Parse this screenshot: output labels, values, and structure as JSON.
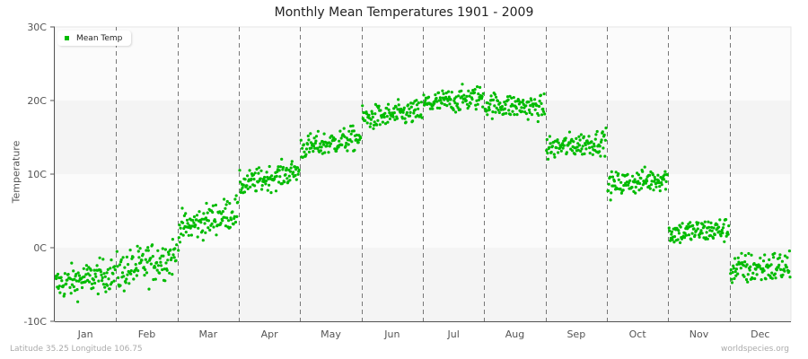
{
  "chart_data": {
    "type": "scatter",
    "title": "Monthly Mean Temperatures 1901 - 2009",
    "xlabel": "",
    "ylabel": "Temperature",
    "ylim": [
      -10,
      30
    ],
    "yticks": [
      "30C",
      "20C",
      "10C",
      "0C",
      "-10C"
    ],
    "ytick_values": [
      30,
      20,
      10,
      0,
      -10
    ],
    "categories": [
      "Jan",
      "Feb",
      "Mar",
      "Apr",
      "May",
      "Jun",
      "Jul",
      "Aug",
      "Sep",
      "Oct",
      "Nov",
      "Dec"
    ],
    "grid": true,
    "legend_position": "top-left",
    "series": [
      {
        "name": "Mean Temp",
        "color": "#00bb00",
        "points_per_month": 109,
        "monthly_ranges": [
          {
            "month": "Jan",
            "start": -5.0,
            "end": -3.5,
            "spread": 2.0
          },
          {
            "month": "Feb",
            "start": -3.5,
            "end": -1.0,
            "spread": 2.5
          },
          {
            "month": "Mar",
            "start": 2.5,
            "end": 5.0,
            "spread": 2.0
          },
          {
            "month": "Apr",
            "start": 8.5,
            "end": 10.5,
            "spread": 1.5
          },
          {
            "month": "May",
            "start": 13.5,
            "end": 15.0,
            "spread": 1.5
          },
          {
            "month": "Jun",
            "start": 17.5,
            "end": 18.5,
            "spread": 1.5
          },
          {
            "month": "Jul",
            "start": 19.5,
            "end": 20.5,
            "spread": 1.5
          },
          {
            "month": "Aug",
            "start": 19.5,
            "end": 19.0,
            "spread": 1.5
          },
          {
            "month": "Sep",
            "start": 13.5,
            "end": 14.5,
            "spread": 1.5
          },
          {
            "month": "Oct",
            "start": 8.5,
            "end": 9.5,
            "spread": 1.5
          },
          {
            "month": "Nov",
            "start": 2.0,
            "end": 2.5,
            "spread": 1.5
          },
          {
            "month": "Dec",
            "start": -3.0,
            "end": -2.5,
            "spread": 2.0
          }
        ]
      }
    ]
  },
  "legend": {
    "label": "Mean Temp",
    "color": "#00bb00"
  },
  "footer": {
    "location": "Latitude 35.25 Longitude 106.75",
    "source": "worldspecies.org"
  },
  "colors": {
    "band_light": "#fbfbfb",
    "band_dark": "#f4f4f4",
    "point": "#00bb00",
    "divider": "#777777",
    "axis": "#555555"
  }
}
